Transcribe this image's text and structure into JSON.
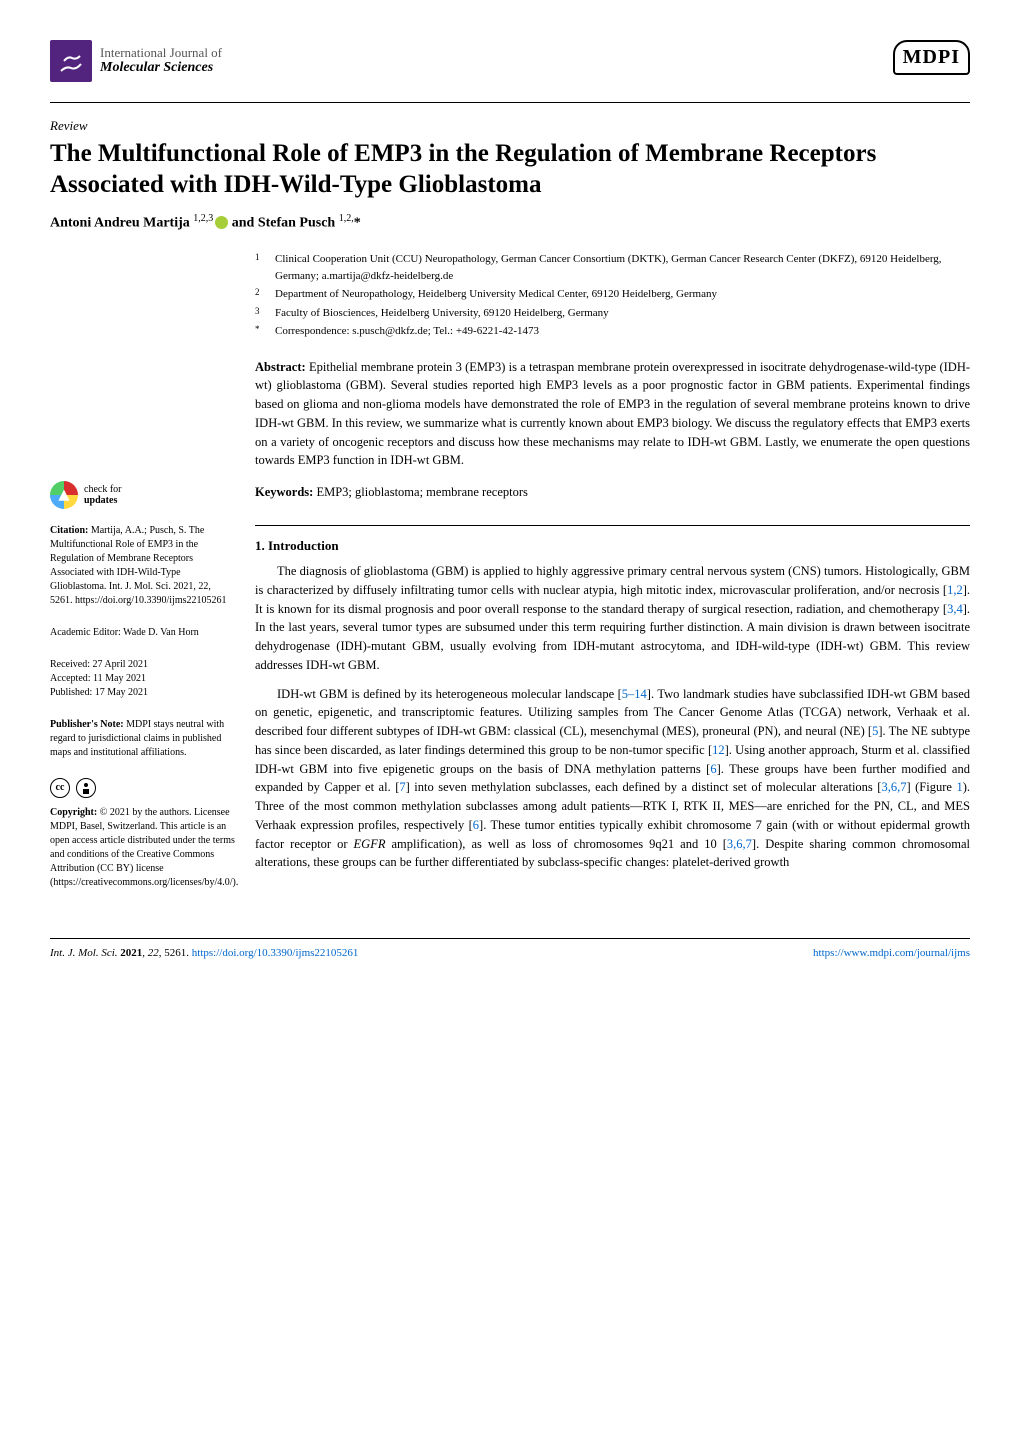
{
  "journal": {
    "line1": "International Journal of",
    "line2": "Molecular Sciences",
    "publisher": "MDPI"
  },
  "article": {
    "type": "Review",
    "title": "The Multifunctional Role of EMP3 in the Regulation of Membrane Receptors Associated with IDH-Wild-Type Glioblastoma",
    "authors_html": "Antoni Andreu Martija <sup>1,2,3</sup><span class=\"orcid-icon\"></span> and Stefan Pusch <sup>1,2,</sup>*"
  },
  "affiliations": [
    {
      "num": "1",
      "text": "Clinical Cooperation Unit (CCU) Neuropathology, German Cancer Consortium (DKTK), German Cancer Research Center (DKFZ), 69120 Heidelberg, Germany; a.martija@dkfz-heidelberg.de"
    },
    {
      "num": "2",
      "text": "Department of Neuropathology, Heidelberg University Medical Center, 69120 Heidelberg, Germany"
    },
    {
      "num": "3",
      "text": "Faculty of Biosciences, Heidelberg University, 69120 Heidelberg, Germany"
    },
    {
      "num": "*",
      "text": "Correspondence: s.pusch@dkfz.de; Tel.: +49-6221-42-1473"
    }
  ],
  "abstract": {
    "label": "Abstract:",
    "text": "Epithelial membrane protein 3 (EMP3) is a tetraspan membrane protein overexpressed in isocitrate dehydrogenase-wild-type (IDH-wt) glioblastoma (GBM). Several studies reported high EMP3 levels as a poor prognostic factor in GBM patients. Experimental findings based on glioma and non-glioma models have demonstrated the role of EMP3 in the regulation of several membrane proteins known to drive IDH-wt GBM. In this review, we summarize what is currently known about EMP3 biology. We discuss the regulatory effects that EMP3 exerts on a variety of oncogenic receptors and discuss how these mechanisms may relate to IDH-wt GBM. Lastly, we enumerate the open questions towards EMP3 function in IDH-wt GBM."
  },
  "keywords": {
    "label": "Keywords:",
    "text": "EMP3; glioblastoma; membrane receptors"
  },
  "sidebar": {
    "check_updates": {
      "line1": "check for",
      "line2": "updates"
    },
    "citation": {
      "label": "Citation:",
      "text": "Martija, A.A.; Pusch, S. The Multifunctional Role of EMP3 in the Regulation of Membrane Receptors Associated with IDH-Wild-Type Glioblastoma. Int. J. Mol. Sci. 2021, 22, 5261. https://doi.org/10.3390/ijms22105261"
    },
    "editor": {
      "label": "Academic Editor:",
      "text": "Wade D. Van Horn"
    },
    "dates": {
      "received": "Received: 27 April 2021",
      "accepted": "Accepted: 11 May 2021",
      "published": "Published: 17 May 2021"
    },
    "publisher_note": {
      "label": "Publisher's Note:",
      "text": "MDPI stays neutral with regard to jurisdictional claims in published maps and institutional affiliations."
    },
    "copyright": {
      "label": "Copyright:",
      "text": "© 2021 by the authors. Licensee MDPI, Basel, Switzerland. This article is an open access article distributed under the terms and conditions of the Creative Commons Attribution (CC BY) license (https://creativecommons.org/licenses/by/4.0/)."
    }
  },
  "body": {
    "section1_heading": "1. Introduction",
    "para1": "The diagnosis of glioblastoma (GBM) is applied to highly aggressive primary central nervous system (CNS) tumors. Histologically, GBM is characterized by diffusely infiltrating tumor cells with nuclear atypia, high mitotic index, microvascular proliferation, and/or necrosis [1,2]. It is known for its dismal prognosis and poor overall response to the standard therapy of surgical resection, radiation, and chemotherapy [3,4]. In the last years, several tumor types are subsumed under this term requiring further distinction. A main division is drawn between isocitrate dehydrogenase (IDH)-mutant GBM, usually evolving from IDH-mutant astrocytoma, and IDH-wild-type (IDH-wt) GBM. This review addresses IDH-wt GBM.",
    "para2": "IDH-wt GBM is defined by its heterogeneous molecular landscape [5–14]. Two landmark studies have subclassified IDH-wt GBM based on genetic, epigenetic, and transcriptomic features. Utilizing samples from The Cancer Genome Atlas (TCGA) network, Verhaak et al. described four different subtypes of IDH-wt GBM: classical (CL), mesenchymal (MES), proneural (PN), and neural (NE) [5]. The NE subtype has since been discarded, as later findings determined this group to be non-tumor specific [12]. Using another approach, Sturm et al. classified IDH-wt GBM into five epigenetic groups on the basis of DNA methylation patterns [6]. These groups have been further modified and expanded by Capper et al. [7] into seven methylation subclasses, each defined by a distinct set of molecular alterations [3,6,7] (Figure 1). Three of the most common methylation subclasses among adult patients—RTK I, RTK II, MES—are enriched for the PN, CL, and MES Verhaak expression profiles, respectively [6]. These tumor entities typically exhibit chromosome 7 gain (with or without epidermal growth factor receptor or EGFR amplification), as well as loss of chromosomes 9q21 and 10 [3,6,7]. Despite sharing common chromosomal alterations, these groups can be further differentiated by subclass-specific changes: platelet-derived growth"
  },
  "footer": {
    "left": "Int. J. Mol. Sci. 2021, 22, 5261. https://doi.org/10.3390/ijms22105261",
    "right": "https://www.mdpi.com/journal/ijms"
  }
}
